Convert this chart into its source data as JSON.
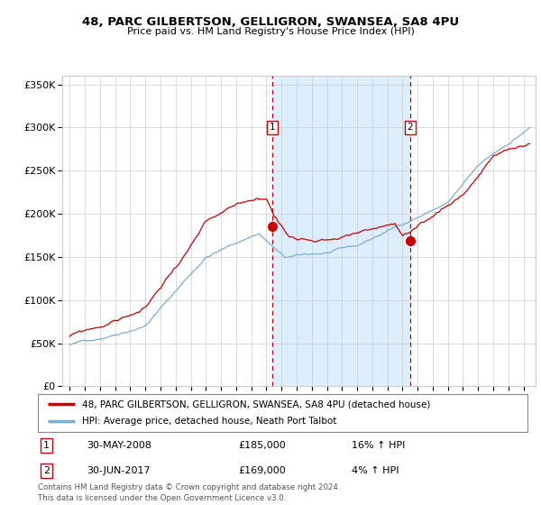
{
  "title": "48, PARC GILBERTSON, GELLIGRON, SWANSEA, SA8 4PU",
  "subtitle": "Price paid vs. HM Land Registry's House Price Index (HPI)",
  "legend_line1": "48, PARC GILBERTSON, GELLIGRON, SWANSEA, SA8 4PU (detached house)",
  "legend_line2": "HPI: Average price, detached house, Neath Port Talbot",
  "annotation1_label": "1",
  "annotation1_date": "30-MAY-2008",
  "annotation1_price": "£185,000",
  "annotation1_hpi": "16% ↑ HPI",
  "annotation2_label": "2",
  "annotation2_date": "30-JUN-2017",
  "annotation2_price": "£169,000",
  "annotation2_hpi": "4% ↑ HPI",
  "footer": "Contains HM Land Registry data © Crown copyright and database right 2024.\nThis data is licensed under the Open Government Licence v3.0.",
  "red_line_color": "#cc0000",
  "blue_line_color": "#7aadd4",
  "marker_color": "#cc0000",
  "shaded_color": "#ddeeff",
  "vline_color": "#cc0000",
  "grid_color": "#cccccc",
  "bg_color": "#ffffff",
  "point1_x": 2008.41,
  "point1_y": 185000,
  "point2_x": 2017.5,
  "point2_y": 169000,
  "ylim": [
    0,
    360000
  ],
  "xlim_start": 1994.5,
  "xlim_end": 2025.8
}
